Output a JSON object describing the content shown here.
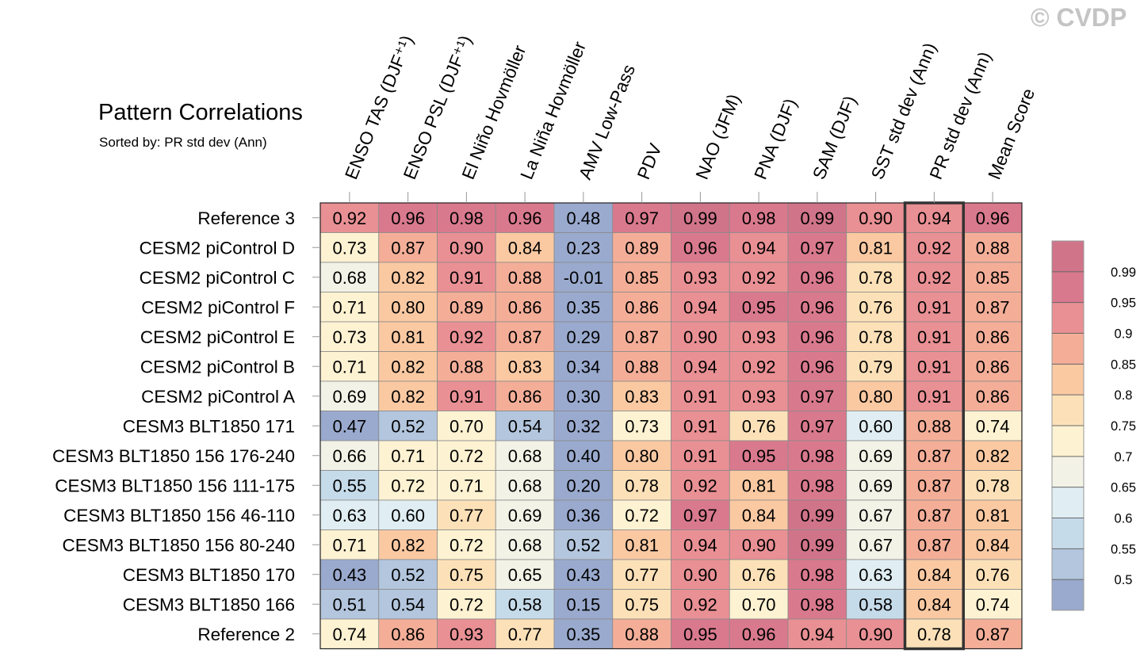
{
  "watermark": "© CVDP",
  "chart_data": {
    "type": "heatmap",
    "title": "Pattern Correlations",
    "subtitle": "Sorted by: PR std dev (Ann)",
    "columns": [
      "ENSO TAS (DJF⁺¹)",
      "ENSO PSL (DJF⁺¹)",
      "El Niño Hovmöller",
      "La Niña Hovmöller",
      "AMV Low-Pass",
      "PDV",
      "NAO (JFM)",
      "PNA (DJF)",
      "SAM (DJF)",
      "SST std dev (Ann)",
      "PR std dev (Ann)",
      "Mean Score"
    ],
    "rows": [
      "Reference 3",
      "CESM2 piControl D",
      "CESM2 piControl C",
      "CESM2 piControl F",
      "CESM2 piControl E",
      "CESM2 piControl B",
      "CESM2 piControl A",
      "CESM3 BLT1850 171",
      "CESM3 BLT1850 156 176-240",
      "CESM3 BLT1850 156 111-175",
      "CESM3 BLT1850 156 46-110",
      "CESM3 BLT1850 156 80-240",
      "CESM3 BLT1850 170",
      "CESM3 BLT1850 166",
      "Reference 2"
    ],
    "values": [
      [
        "0.92",
        "0.96",
        "0.98",
        "0.96",
        "0.48",
        "0.97",
        "0.99",
        "0.98",
        "0.99",
        "0.90",
        "0.94",
        "0.96"
      ],
      [
        "0.73",
        "0.87",
        "0.90",
        "0.84",
        "0.23",
        "0.89",
        "0.96",
        "0.94",
        "0.97",
        "0.81",
        "0.92",
        "0.88"
      ],
      [
        "0.68",
        "0.82",
        "0.91",
        "0.88",
        "-0.01",
        "0.85",
        "0.93",
        "0.92",
        "0.96",
        "0.78",
        "0.92",
        "0.85"
      ],
      [
        "0.71",
        "0.80",
        "0.89",
        "0.86",
        "0.35",
        "0.86",
        "0.94",
        "0.95",
        "0.96",
        "0.76",
        "0.91",
        "0.87"
      ],
      [
        "0.73",
        "0.81",
        "0.92",
        "0.87",
        "0.29",
        "0.87",
        "0.90",
        "0.93",
        "0.96",
        "0.78",
        "0.91",
        "0.86"
      ],
      [
        "0.71",
        "0.82",
        "0.88",
        "0.83",
        "0.34",
        "0.88",
        "0.94",
        "0.92",
        "0.96",
        "0.79",
        "0.91",
        "0.86"
      ],
      [
        "0.69",
        "0.82",
        "0.91",
        "0.86",
        "0.30",
        "0.83",
        "0.91",
        "0.93",
        "0.97",
        "0.80",
        "0.91",
        "0.86"
      ],
      [
        "0.47",
        "0.52",
        "0.70",
        "0.54",
        "0.32",
        "0.73",
        "0.91",
        "0.76",
        "0.97",
        "0.60",
        "0.88",
        "0.74"
      ],
      [
        "0.66",
        "0.71",
        "0.72",
        "0.68",
        "0.40",
        "0.80",
        "0.91",
        "0.95",
        "0.98",
        "0.69",
        "0.87",
        "0.82"
      ],
      [
        "0.55",
        "0.72",
        "0.71",
        "0.68",
        "0.20",
        "0.78",
        "0.92",
        "0.81",
        "0.98",
        "0.69",
        "0.87",
        "0.78"
      ],
      [
        "0.63",
        "0.60",
        "0.77",
        "0.69",
        "0.36",
        "0.72",
        "0.97",
        "0.84",
        "0.99",
        "0.67",
        "0.87",
        "0.81"
      ],
      [
        "0.71",
        "0.82",
        "0.72",
        "0.68",
        "0.52",
        "0.81",
        "0.94",
        "0.90",
        "0.99",
        "0.67",
        "0.87",
        "0.84"
      ],
      [
        "0.43",
        "0.52",
        "0.75",
        "0.65",
        "0.43",
        "0.77",
        "0.90",
        "0.76",
        "0.98",
        "0.63",
        "0.84",
        "0.76"
      ],
      [
        "0.51",
        "0.54",
        "0.72",
        "0.58",
        "0.15",
        "0.75",
        "0.92",
        "0.70",
        "0.98",
        "0.58",
        "0.84",
        "0.74"
      ],
      [
        "0.74",
        "0.86",
        "0.93",
        "0.77",
        "0.35",
        "0.88",
        "0.95",
        "0.96",
        "0.94",
        "0.90",
        "0.78",
        "0.87"
      ]
    ],
    "highlighted_column": "PR std dev (Ann)",
    "colorbar": {
      "ticks": [
        "0.99",
        "0.95",
        "0.9",
        "0.85",
        "0.8",
        "0.75",
        "0.7",
        "0.65",
        "0.6",
        "0.55",
        "0.5"
      ],
      "levels": [
        0.5,
        0.55,
        0.6,
        0.65,
        0.7,
        0.75,
        0.8,
        0.85,
        0.9,
        0.95,
        0.99
      ],
      "colors": [
        "#9aaace",
        "#b3c6de",
        "#c6dbea",
        "#e0eef3",
        "#f2f2e6",
        "#fdf2d2",
        "#fce1b8",
        "#fac9a2",
        "#f4ae98",
        "#e99094",
        "#d9798d",
        "#d07489"
      ]
    },
    "grid": true,
    "colorbar_position": "right"
  }
}
